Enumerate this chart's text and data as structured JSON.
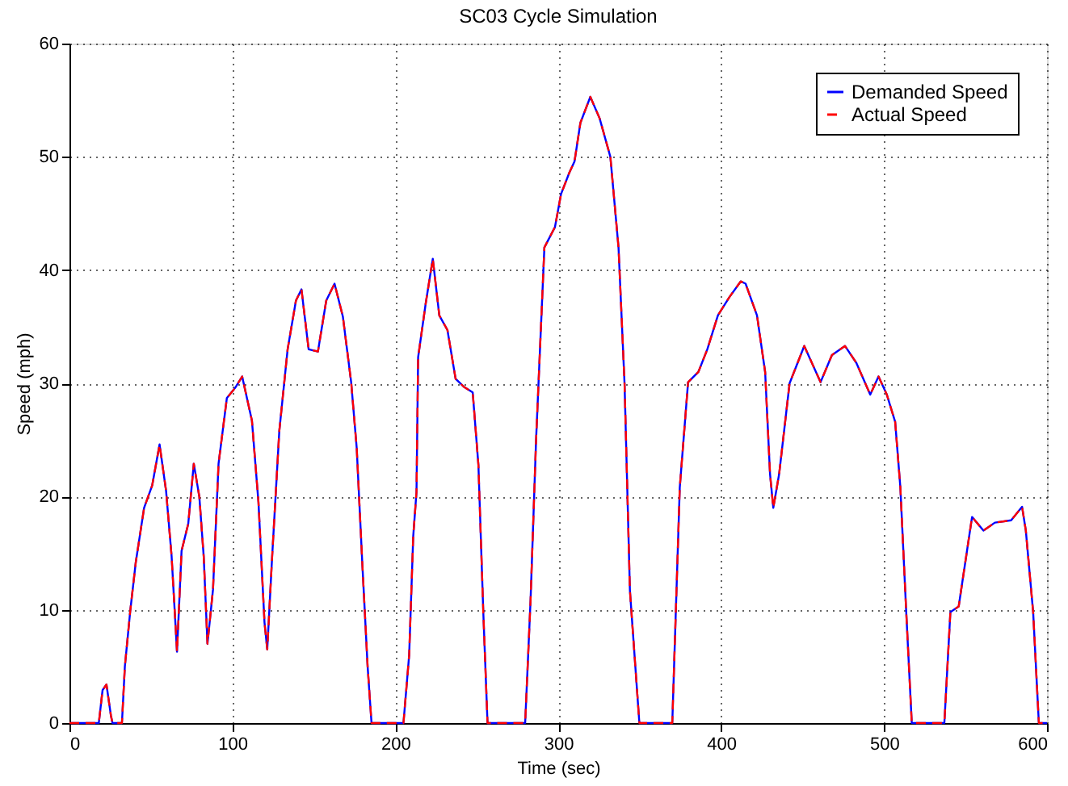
{
  "chart_data": {
    "type": "line",
    "title": "SC03 Cycle Simulation",
    "xlabel": "Time (sec)",
    "ylabel": "Speed (mph)",
    "x": [
      0,
      18,
      20.3,
      22.7,
      25.4,
      26.4,
      32.2,
      34,
      37.3,
      40.7,
      45.8,
      50.8,
      55.3,
      59.3,
      62.7,
      66,
      68.8,
      72.9,
      76.3,
      79.7,
      82.4,
      84.7,
      88.1,
      91.5,
      96.6,
      101.7,
      106,
      112,
      116,
      119.7,
      121.4,
      124.4,
      128.8,
      133.9,
      139,
      142.4,
      146.8,
      152.5,
      157.6,
      162.7,
      167.8,
      172.9,
      176.3,
      179.7,
      183,
      185.4,
      205,
      208.5,
      211,
      213,
      214,
      218.6,
      223,
      227,
      232,
      237,
      242,
      247.5,
      251,
      254,
      256.6,
      279.7,
      283,
      286.4,
      291.5,
      298,
      301.7,
      306.8,
      310,
      313.6,
      319.7,
      325.4,
      332,
      337,
      340.7,
      344,
      349.8,
      370,
      374.6,
      379.7,
      386,
      391.5,
      398,
      405,
      412,
      415,
      422,
      427,
      430,
      432,
      435.6,
      442,
      451,
      461,
      468,
      476,
      483,
      491.5,
      496.6,
      501.7,
      506.8,
      510,
      513.6,
      517,
      537,
      540.7,
      545.8,
      554,
      561,
      568,
      578,
      584.7,
      587,
      591.5,
      595,
      600
    ],
    "series": [
      {
        "name": "Demanded Speed",
        "color": "#0000ff",
        "line_style": "solid",
        "values": [
          0,
          0,
          2.9,
          3.4,
          0.7,
          0,
          0,
          5,
          9.9,
          14.2,
          19,
          21,
          24.6,
          20.5,
          14.7,
          6.3,
          15.2,
          17.6,
          22.9,
          20,
          14.7,
          7,
          11.8,
          22.9,
          28.7,
          29.6,
          30.6,
          26.7,
          19.5,
          8.9,
          6.5,
          14.7,
          25.8,
          33,
          37.3,
          38.3,
          33,
          32.8,
          37.3,
          38.8,
          35.9,
          30.1,
          24.3,
          14.2,
          5,
          0,
          0,
          6,
          16.5,
          20.4,
          32.3,
          37,
          41,
          36,
          34.7,
          30.4,
          29.7,
          29.2,
          22.8,
          9.8,
          0,
          0,
          10.8,
          25,
          42,
          43.8,
          46.7,
          48.6,
          49.6,
          53,
          55.3,
          53.4,
          50,
          42,
          30,
          11.7,
          0,
          0,
          20.8,
          30.1,
          31,
          33,
          36,
          37.6,
          39,
          38.8,
          36,
          31,
          22,
          19,
          22,
          30,
          33.3,
          30.1,
          32.5,
          33.3,
          31.8,
          29,
          30.6,
          29,
          26.6,
          20.8,
          9.8,
          0,
          0,
          9.8,
          10.3,
          18.2,
          17,
          17.7,
          17.9,
          19.1,
          17,
          9.8,
          0,
          0
        ]
      },
      {
        "name": "Actual Speed",
        "color": "#ff0000",
        "line_style": "dashed",
        "values": [
          0,
          0,
          2.9,
          3.4,
          0.7,
          0,
          0,
          5,
          9.9,
          14.2,
          19,
          21,
          24.6,
          20.5,
          14.7,
          6.3,
          15.2,
          17.6,
          22.9,
          20,
          14.7,
          7,
          11.8,
          22.9,
          28.7,
          29.6,
          30.6,
          26.7,
          19.5,
          8.9,
          6.5,
          14.7,
          25.8,
          33,
          37.3,
          38.3,
          33,
          32.8,
          37.3,
          38.8,
          35.9,
          30.1,
          24.3,
          14.2,
          5,
          0,
          0,
          6,
          16.5,
          20.4,
          32.3,
          37,
          41,
          36,
          34.7,
          30.4,
          29.7,
          29.2,
          22.8,
          9.8,
          0,
          0,
          10.8,
          25,
          42,
          43.8,
          46.7,
          48.6,
          49.6,
          53,
          55.3,
          53.4,
          50,
          42,
          30,
          11.7,
          0,
          0,
          20.8,
          30.1,
          31,
          33,
          36,
          37.6,
          39,
          38.8,
          36,
          31,
          22,
          19,
          22,
          30,
          33.3,
          30.1,
          32.5,
          33.3,
          31.8,
          29,
          30.6,
          29,
          26.6,
          20.8,
          9.8,
          0,
          0,
          9.8,
          10.3,
          18.2,
          17,
          17.7,
          17.9,
          19.1,
          17,
          9.8,
          0,
          0
        ]
      }
    ],
    "xlim": [
      0,
      600
    ],
    "xticks": [
      0,
      100,
      200,
      300,
      400,
      500,
      600
    ],
    "ylim": [
      0,
      60
    ],
    "yticks": [
      0,
      10,
      20,
      30,
      40,
      50,
      60
    ],
    "grid": true,
    "legend": "top right"
  }
}
